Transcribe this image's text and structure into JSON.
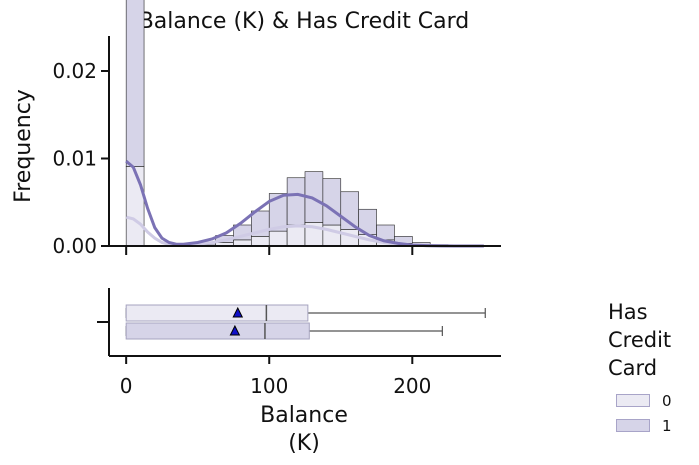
{
  "chart_data": {
    "type": "histogram+boxplot",
    "title": "Balance (K) & Has Credit Card",
    "xlabel_line1": "Balance",
    "xlabel_line2": "(K)",
    "ylabel": "Frequency",
    "xlim": [
      -12,
      262
    ],
    "ylim": [
      0,
      0.024
    ],
    "x_ticks": [
      0,
      100,
      200
    ],
    "x_tick_labels": [
      "0",
      "100",
      "200"
    ],
    "y_ticks": [
      0.0,
      0.01,
      0.02
    ],
    "y_tick_labels": [
      "0.00",
      "0.01",
      "0.02"
    ],
    "bin_edges": [
      0,
      12.5,
      25,
      37.5,
      50,
      62.5,
      75,
      87.5,
      100,
      112.5,
      125,
      137.5,
      150,
      162.5,
      175,
      187.5,
      200,
      212.5,
      225,
      237.5,
      250
    ],
    "histogram_note": "stacked histogram, total height per bin",
    "series": [
      {
        "name": "0",
        "color": "#ebeaf3",
        "hist_values": [
          0.0091,
          0.0,
          0.0,
          0.0,
          0.0001,
          0.0004,
          0.0007,
          0.0011,
          0.0017,
          0.0024,
          0.0027,
          0.0024,
          0.0019,
          0.0013,
          0.0007,
          0.0003,
          0.0001,
          5e-05,
          2e-05,
          0.0
        ],
        "kde_x": [
          0,
          5,
          10,
          15,
          20,
          25,
          30,
          35,
          40,
          50,
          60,
          70,
          80,
          90,
          100,
          110,
          120,
          130,
          140,
          150,
          160,
          170,
          180,
          190,
          200,
          210,
          220,
          230,
          240,
          250
        ],
        "kde_y": [
          0.0033,
          0.0031,
          0.0025,
          0.0016,
          0.0009,
          0.0004,
          0.0002,
          0.0001,
          0.0001,
          0.0002,
          0.0004,
          0.0007,
          0.0011,
          0.0015,
          0.0019,
          0.0022,
          0.0023,
          0.0022,
          0.0019,
          0.0015,
          0.0011,
          0.0007,
          0.0004,
          0.0002,
          0.0001,
          4e-05,
          1e-05,
          0.0,
          0.0,
          0.0
        ],
        "box": {
          "min": 0,
          "q1": 0,
          "median": 98,
          "q3": 127,
          "max": 251,
          "mean": 78
        }
      },
      {
        "name": "1",
        "color": "#d6d4e8",
        "hist_values": [
          0.0229,
          0.0,
          0.0,
          0.0,
          0.0003,
          0.0008,
          0.0017,
          0.0029,
          0.0043,
          0.0054,
          0.0058,
          0.0053,
          0.0043,
          0.0029,
          0.0017,
          0.0008,
          0.0003,
          0.0001,
          5e-05,
          0.0
        ],
        "kde_x": [
          0,
          5,
          10,
          15,
          20,
          25,
          30,
          35,
          40,
          50,
          60,
          70,
          80,
          90,
          100,
          110,
          120,
          130,
          140,
          150,
          160,
          170,
          180,
          190,
          200,
          210,
          220,
          230,
          240,
          250
        ],
        "kde_y": [
          0.0097,
          0.009,
          0.007,
          0.0043,
          0.0021,
          0.0009,
          0.0004,
          0.0002,
          0.0002,
          0.0004,
          0.0008,
          0.0015,
          0.0026,
          0.0039,
          0.0051,
          0.0058,
          0.0059,
          0.0055,
          0.0046,
          0.0034,
          0.0022,
          0.0012,
          0.0006,
          0.0003,
          0.0001,
          4e-05,
          1e-05,
          0.0,
          0.0,
          0.0
        ],
        "box": {
          "min": 0,
          "q1": 0,
          "median": 97,
          "q3": 128,
          "max": 221,
          "mean": 76
        }
      }
    ],
    "kde_color": "#7b72b5",
    "kde_color_light": "#cfcbe5",
    "legend": {
      "title_lines": [
        "Has",
        "Credit",
        "Card"
      ],
      "placement": "right",
      "entries": [
        "0",
        "1"
      ]
    }
  }
}
